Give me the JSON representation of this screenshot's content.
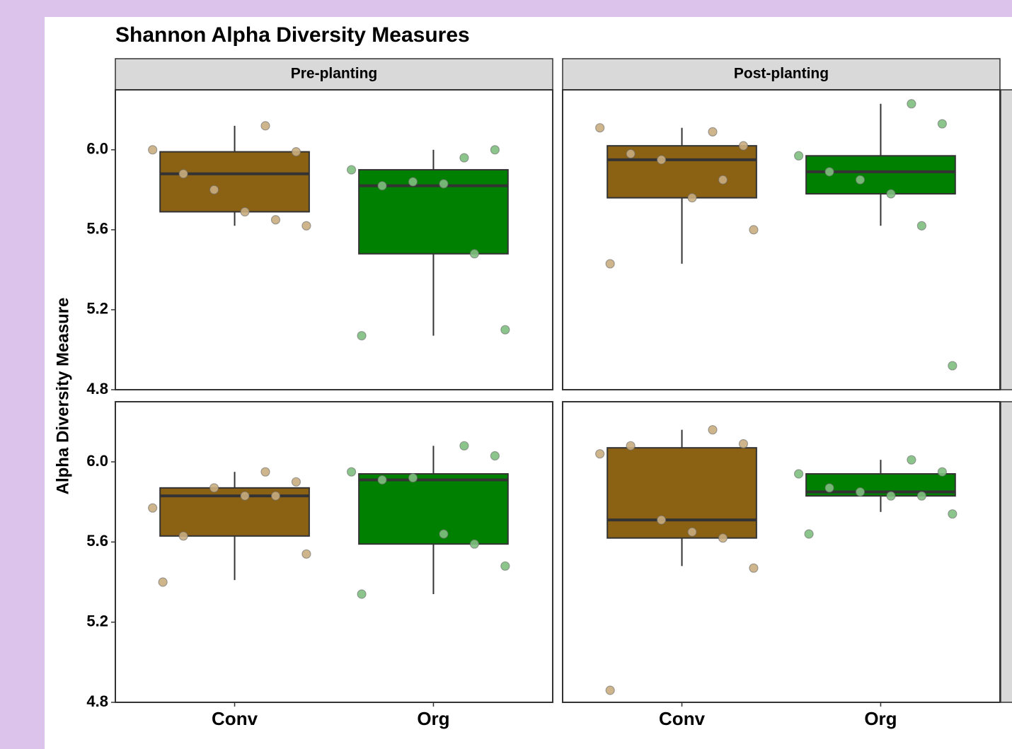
{
  "chart_data": {
    "type": "box",
    "title": "Shannon Alpha Diversity Measures",
    "ylabel": "Alpha Diversity Measure",
    "facets": [
      "Pre-planting",
      "Post-planting"
    ],
    "categories": [
      "Conv",
      "Org"
    ],
    "ylim": [
      4.8,
      6.3
    ],
    "yticks": [
      4.8,
      5.2,
      5.6,
      {
        "value": 6,
        "label": "6.0"
      }
    ],
    "rows": [
      [
        {
          "series": [
            {
              "color": "#8b6113",
              "point_color": "#c9ad7f",
              "whisker_low": 5.62,
              "q1": 5.69,
              "median": 5.88,
              "q3": 5.99,
              "whisker_high": 6.12,
              "points": [
                6.12,
                5.99,
                6.0,
                5.88,
                5.8,
                5.69,
                5.65,
                5.62
              ]
            },
            {
              "color": "#008000",
              "point_color": "#7fbf7f",
              "whisker_low": 5.07,
              "q1": 5.48,
              "median": 5.82,
              "q3": 5.9,
              "whisker_high": 6.0,
              "points": [
                5.96,
                6.0,
                5.9,
                5.82,
                5.84,
                5.83,
                5.48,
                5.1,
                5.07
              ]
            }
          ]
        },
        {
          "series": [
            {
              "color": "#8b6113",
              "point_color": "#c9ad7f",
              "whisker_low": 5.43,
              "q1": 5.76,
              "median": 5.95,
              "q3": 6.02,
              "whisker_high": 6.11,
              "points": [
                6.09,
                6.02,
                6.11,
                5.98,
                5.95,
                5.76,
                5.85,
                5.6,
                5.43
              ]
            },
            {
              "color": "#008000",
              "point_color": "#7fbf7f",
              "whisker_low": 5.62,
              "q1": 5.78,
              "median": 5.89,
              "q3": 5.97,
              "whisker_high": 6.23,
              "points": [
                6.23,
                6.13,
                5.97,
                5.89,
                5.85,
                5.78,
                5.62,
                4.92
              ]
            }
          ]
        }
      ],
      [
        {
          "series": [
            {
              "color": "#8b6113",
              "point_color": "#c9ad7f",
              "whisker_low": 5.41,
              "q1": 5.63,
              "median": 5.83,
              "q3": 5.87,
              "whisker_high": 5.95,
              "points": [
                5.95,
                5.9,
                5.77,
                5.63,
                5.87,
                5.83,
                5.83,
                5.54,
                5.4
              ]
            },
            {
              "color": "#008000",
              "point_color": "#7fbf7f",
              "whisker_low": 5.34,
              "q1": 5.59,
              "median": 5.91,
              "q3": 5.94,
              "whisker_high": 6.08,
              "points": [
                6.08,
                6.03,
                5.95,
                5.91,
                5.92,
                5.64,
                5.59,
                5.48,
                5.34
              ]
            }
          ]
        },
        {
          "series": [
            {
              "color": "#8b6113",
              "point_color": "#c9ad7f",
              "whisker_low": 5.48,
              "q1": 5.62,
              "median": 5.71,
              "q3": 6.07,
              "whisker_high": 6.16,
              "points": [
                6.16,
                6.09,
                6.04,
                6.08,
                5.71,
                5.65,
                5.62,
                5.47,
                4.86
              ]
            },
            {
              "color": "#008000",
              "point_color": "#7fbf7f",
              "whisker_low": 5.75,
              "q1": 5.83,
              "median": 5.85,
              "q3": 5.94,
              "whisker_high": 6.01,
              "points": [
                6.01,
                5.95,
                5.94,
                5.87,
                5.85,
                5.83,
                5.83,
                5.74,
                5.64
              ]
            }
          ]
        }
      ]
    ]
  }
}
